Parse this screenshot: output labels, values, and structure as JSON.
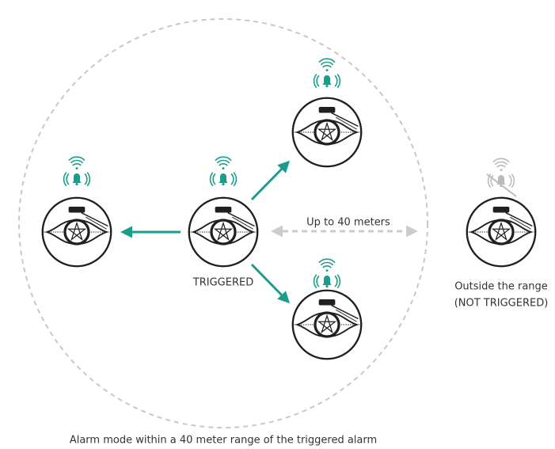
{
  "diagram": {
    "center_label": "TRIGGERED",
    "range_label": "Up to 40 meters",
    "outside_label": [
      "Outside the range",
      "(NOT TRIGGERED)"
    ],
    "caption": "Alarm mode within a 40 meter range of the triggered alarm"
  }
}
